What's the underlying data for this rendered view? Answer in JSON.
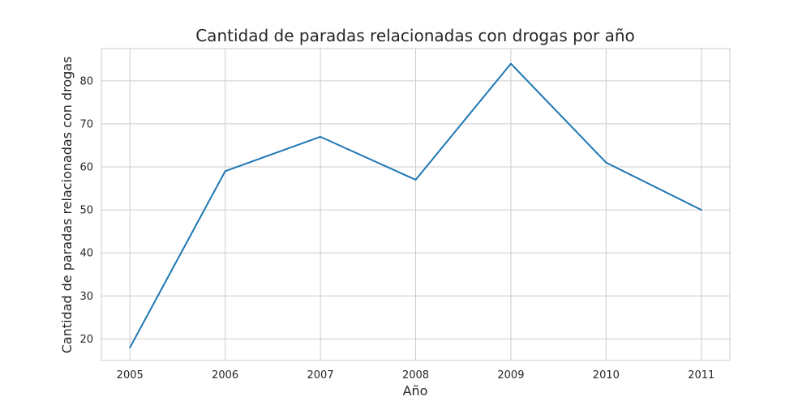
{
  "chart_data": {
    "type": "line",
    "title": "Cantidad de paradas relacionadas con drogas por año",
    "xlabel": "Año",
    "ylabel": "Cantidad de paradas relacionadas con drogas",
    "x": [
      2005,
      2006,
      2007,
      2008,
      2009,
      2010,
      2011
    ],
    "series": [
      {
        "values": [
          18,
          59,
          67,
          57,
          84,
          61,
          50
        ],
        "color": "#1f77b4"
      }
    ],
    "x_ticks": [
      "2005",
      "2006",
      "2007",
      "2008",
      "2009",
      "2010",
      "2011"
    ],
    "y_ticks": [
      "20",
      "30",
      "40",
      "50",
      "60",
      "70",
      "80"
    ],
    "xlim": [
      2004.7,
      2011.3
    ],
    "ylim": [
      15.0,
      87.5
    ],
    "grid": true,
    "legend": "none"
  }
}
